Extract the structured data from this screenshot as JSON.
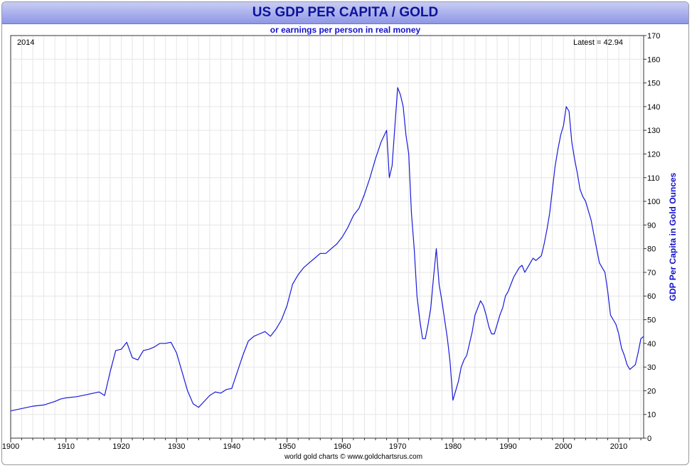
{
  "chart_data": {
    "type": "line",
    "title": "US GDP PER CAPITA / GOLD",
    "subtitle": "or earnings per person in real money",
    "ylabel": "GDP Per Capita in Gold Ounces",
    "xlabel": "",
    "year_label": "2014",
    "latest_label": "Latest = 42.94",
    "footer": "world gold charts © www.goldchartsrus.com",
    "xlim": [
      1900,
      2014.5
    ],
    "ylim": [
      0,
      170
    ],
    "x_ticks": [
      1900,
      1910,
      1920,
      1930,
      1940,
      1950,
      1960,
      1970,
      1980,
      1990,
      2000,
      2010
    ],
    "y_ticks": [
      0,
      10,
      20,
      30,
      40,
      50,
      60,
      70,
      80,
      90,
      100,
      110,
      120,
      130,
      140,
      150,
      160,
      170
    ],
    "grid": true,
    "line_color": "#1a1adb",
    "series": [
      {
        "x": [
          1900,
          1902,
          1904,
          1906,
          1908,
          1909,
          1910,
          1912,
          1914,
          1916,
          1917,
          1918,
          1919,
          1920,
          1921,
          1922,
          1923,
          1924,
          1925,
          1926,
          1927,
          1928,
          1929,
          1930,
          1931,
          1932,
          1933,
          1934,
          1935,
          1936,
          1937,
          1938,
          1939,
          1940,
          1941,
          1942,
          1943,
          1944,
          1945,
          1946,
          1947,
          1948,
          1949,
          1950,
          1951,
          1952,
          1953,
          1954,
          1955,
          1956,
          1957,
          1958,
          1959,
          1960,
          1961,
          1962,
          1963,
          1964,
          1965,
          1966,
          1967,
          1968,
          1968.5,
          1969,
          1970,
          1970.5,
          1971,
          1971.5,
          1972,
          1972.5,
          1973,
          1973.5,
          1974,
          1974.5,
          1975,
          1975.5,
          1976,
          1976.5,
          1977,
          1977.5,
          1978,
          1978.5,
          1979,
          1979.5,
          1980,
          1980.5,
          1981,
          1981.5,
          1982,
          1982.5,
          1983,
          1983.5,
          1984,
          1984.5,
          1985,
          1985.5,
          1986,
          1986.5,
          1987,
          1987.5,
          1988,
          1988.5,
          1989,
          1989.5,
          1990,
          1990.5,
          1991,
          1991.5,
          1992,
          1992.5,
          1993,
          1993.5,
          1994,
          1994.5,
          1995,
          1995.5,
          1996,
          1996.5,
          1997,
          1997.5,
          1998,
          1998.5,
          1999,
          1999.5,
          2000,
          2000.5,
          2001,
          2001.5,
          2002,
          2002.5,
          2003,
          2003.5,
          2004,
          2004.5,
          2005,
          2005.5,
          2006,
          2006.5,
          2007,
          2007.5,
          2008,
          2008.5,
          2009,
          2009.5,
          2010,
          2010.5,
          2011,
          2011.5,
          2012,
          2012.5,
          2013,
          2013.5,
          2014,
          2014.5
        ],
        "values": [
          11.5,
          12.5,
          13.5,
          14.0,
          15.5,
          16.5,
          17.0,
          17.5,
          18.5,
          19.5,
          18.0,
          28.0,
          37.0,
          37.5,
          40.5,
          34.0,
          33.0,
          37.0,
          37.5,
          38.5,
          40.0,
          40.0,
          40.5,
          36.0,
          28.0,
          20.0,
          14.5,
          13.0,
          15.5,
          18.0,
          19.5,
          19.0,
          20.5,
          21.0,
          28.0,
          35.0,
          41.0,
          43.0,
          44.0,
          45.0,
          43.0,
          46.0,
          50.0,
          56.0,
          65.0,
          69.0,
          72.0,
          74.0,
          76.0,
          78.0,
          78.0,
          80.0,
          82.0,
          85.0,
          89.0,
          94.0,
          97.0,
          103.0,
          110.0,
          118.0,
          125.0,
          130.0,
          110.0,
          115.0,
          148.0,
          145.0,
          140.0,
          128.0,
          120.0,
          95.0,
          80.0,
          60.0,
          50.0,
          42.0,
          42.0,
          48.0,
          55.0,
          68.0,
          80.0,
          65.0,
          58.0,
          50.0,
          42.0,
          32.0,
          16.0,
          20.0,
          24.0,
          30.0,
          33.0,
          35.0,
          40.0,
          45.0,
          52.0,
          55.0,
          58.0,
          56.0,
          52.0,
          47.0,
          44.0,
          44.0,
          48.0,
          52.0,
          55.0,
          60.0,
          62.0,
          65.0,
          68.0,
          70.0,
          72.0,
          73.0,
          70.0,
          72.0,
          74.0,
          76.0,
          75.0,
          76.0,
          77.0,
          82.0,
          88.0,
          95.0,
          105.0,
          115.0,
          122.0,
          128.0,
          132.0,
          140.0,
          138.0,
          125.0,
          118.0,
          112.0,
          105.0,
          102.0,
          100.0,
          96.0,
          92.0,
          86.0,
          80.0,
          74.0,
          72.0,
          70.0,
          62.0,
          52.0,
          50.0,
          48.0,
          44.0,
          38.0,
          35.0,
          31.0,
          29.0,
          30.0,
          31.0,
          36.0,
          42.0,
          42.94
        ]
      }
    ]
  }
}
